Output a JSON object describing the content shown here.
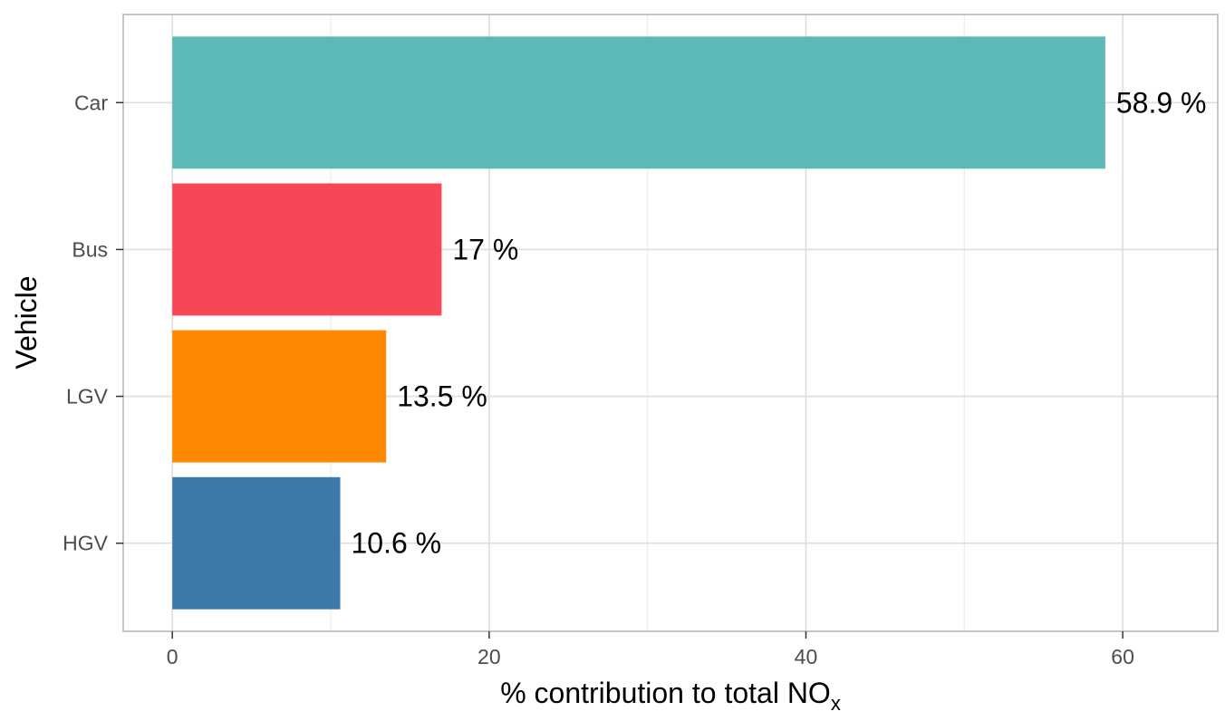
{
  "chart_data": {
    "type": "bar",
    "orientation": "horizontal",
    "categories": [
      "Car",
      "Bus",
      "LGV",
      "HGV"
    ],
    "values": [
      58.9,
      17,
      13.5,
      10.6
    ],
    "labels": [
      "58.9 %",
      "17 %",
      "13.5 %",
      "10.6 %"
    ],
    "colors": [
      "#5cb9b5",
      "#f74757",
      "#ff8800",
      "#3e78a8"
    ],
    "xlabel": "% contribution to total NO",
    "xlabel_subscript": "x",
    "ylabel": "Vehicle",
    "xticks": [
      0,
      20,
      40,
      60
    ],
    "xtick_labels": [
      "0",
      "20",
      "40",
      "60"
    ],
    "xlim": [
      -3.1,
      66
    ],
    "grid": true,
    "legend": "none"
  }
}
